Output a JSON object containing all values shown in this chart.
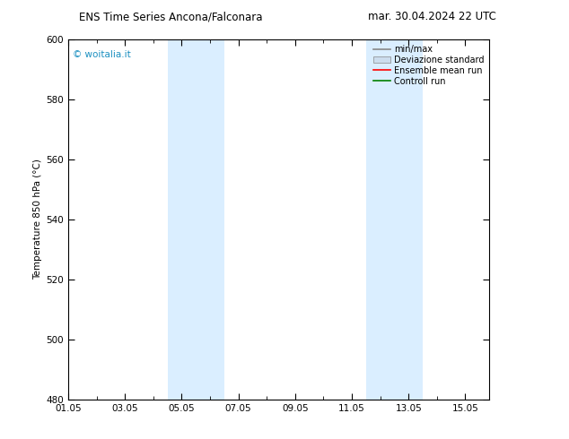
{
  "title_left": "ENS Time Series Ancona/Falconara",
  "title_right": "mar. 30.04.2024 22 UTC",
  "ylabel": "Temperature 850 hPa (°C)",
  "ylim": [
    480,
    600
  ],
  "yticks": [
    480,
    500,
    520,
    540,
    560,
    580,
    600
  ],
  "xtick_labels": [
    "01.05",
    "03.05",
    "05.05",
    "07.05",
    "09.05",
    "11.05",
    "13.05",
    "15.05"
  ],
  "xtick_positions": [
    0,
    2,
    4,
    6,
    8,
    10,
    12,
    14
  ],
  "xlim": [
    0,
    14.85
  ],
  "shaded_bands": [
    {
      "x_start": 3.5,
      "x_end": 5.5
    },
    {
      "x_start": 10.5,
      "x_end": 12.5
    }
  ],
  "shaded_color": "#daeeff",
  "watermark": "© woitalia.it",
  "watermark_color": "#1a8fc0",
  "legend_items": [
    {
      "label": "min/max",
      "color": "#888888",
      "lw": 1.2,
      "type": "line"
    },
    {
      "label": "Deviazione standard",
      "color": "#ccddee",
      "lw": 6,
      "type": "band"
    },
    {
      "label": "Ensemble mean run",
      "color": "red",
      "lw": 1.2,
      "type": "line"
    },
    {
      "label": "Controll run",
      "color": "green",
      "lw": 1.2,
      "type": "line"
    }
  ],
  "background_color": "#ffffff",
  "fig_width": 6.34,
  "fig_height": 4.9,
  "dpi": 100
}
